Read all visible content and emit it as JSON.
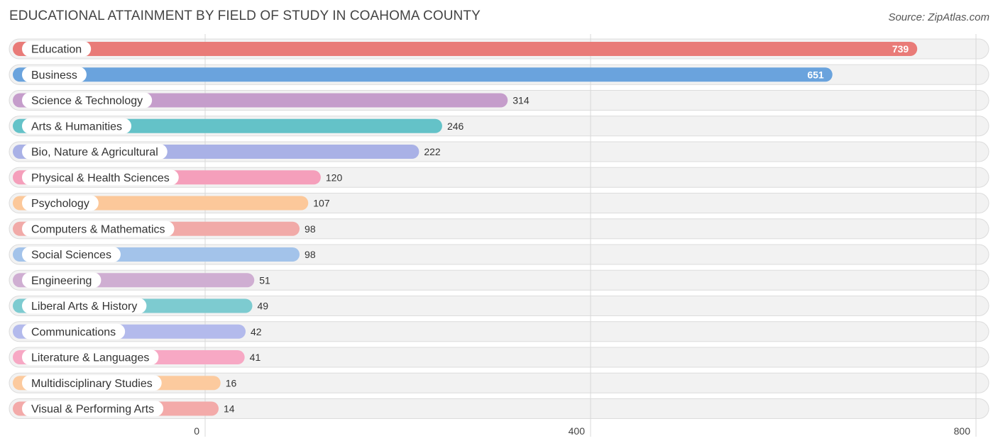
{
  "chart_data": {
    "type": "bar",
    "orientation": "horizontal",
    "title": "EDUCATIONAL ATTAINMENT BY FIELD OF STUDY IN COAHOMA COUNTY",
    "source": "Source: ZipAtlas.com",
    "xlim": [
      0,
      800
    ],
    "ticks": [
      0,
      400,
      800
    ],
    "categories": [
      "Education",
      "Business",
      "Science & Technology",
      "Arts & Humanities",
      "Bio, Nature & Agricultural",
      "Physical & Health Sciences",
      "Psychology",
      "Computers & Mathematics",
      "Social Sciences",
      "Engineering",
      "Liberal Arts & History",
      "Communications",
      "Literature & Languages",
      "Multidisciplinary Studies",
      "Visual & Performing Arts"
    ],
    "values": [
      739,
      651,
      314,
      246,
      222,
      120,
      107,
      98,
      98,
      51,
      49,
      42,
      41,
      16,
      14
    ],
    "colors": [
      "#e97b78",
      "#6aa3dd",
      "#c59dcb",
      "#64c2c8",
      "#a9b1e6",
      "#f59fbb",
      "#fcc89a",
      "#f1aaa8",
      "#a3c3ea",
      "#cfaed2",
      "#7dcbd0",
      "#b3baec",
      "#f7a8c4",
      "#fcca9e",
      "#f3aaa9"
    ]
  }
}
